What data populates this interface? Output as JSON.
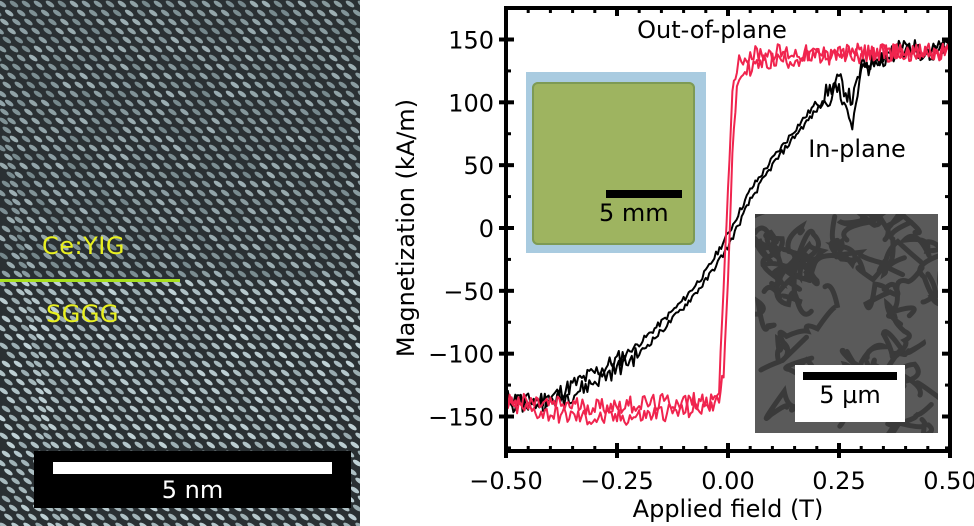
{
  "left_panel": {
    "type": "TEM lattice image",
    "labels": {
      "upper_layer": "Ce:YIG",
      "lower_layer": "SGGG"
    },
    "scale_bar": "5 nm",
    "colors": {
      "label": "#e8f020",
      "interface_line": "#a8e020"
    }
  },
  "insets": {
    "photo": {
      "scale_bar": "5 mm"
    },
    "mfm": {
      "scale_bar": "5 µm"
    }
  },
  "chart_data": {
    "type": "line",
    "title": "",
    "xlabel": "Applied field (T)",
    "ylabel": "Magnetization (kA/m)",
    "xlim": [
      -0.5,
      0.5
    ],
    "ylim": [
      -178,
      175
    ],
    "xticks": [
      -0.5,
      -0.25,
      0.0,
      0.25,
      0.5
    ],
    "xtick_labels": [
      "−0.50",
      "−0.25",
      "0.00",
      "0.25",
      "0.50"
    ],
    "yticks": [
      -150,
      -100,
      -50,
      0,
      50,
      100,
      150
    ],
    "ytick_labels": [
      "−150",
      "−100",
      "−50",
      "0",
      "50",
      "100",
      "150"
    ],
    "grid": false,
    "annotations": [
      {
        "text": "Out-of-plane",
        "series": "Out-of-plane",
        "color": "#f0244e"
      },
      {
        "text": "In-plane",
        "series": "In-plane",
        "color": "#000000"
      }
    ],
    "series": [
      {
        "name": "Out-of-plane",
        "color": "#f0244e",
        "branches": [
          {
            "x": [
              -0.5,
              -0.45,
              -0.4,
              -0.35,
              -0.3,
              -0.25,
              -0.2,
              -0.15,
              -0.1,
              -0.06,
              -0.03,
              -0.02,
              -0.01,
              0.0,
              0.01,
              0.02,
              0.03,
              0.05,
              0.1,
              0.2,
              0.3,
              0.4,
              0.5
            ],
            "y": [
              -140,
              -145,
              -148,
              -150,
              -152,
              -151,
              -150,
              -147,
              -146,
              -143,
              -138,
              -125,
              -50,
              30,
              110,
              130,
              135,
              138,
              140,
              138,
              140,
              140,
              138
            ]
          },
          {
            "x": [
              -0.5,
              -0.4,
              -0.3,
              -0.2,
              -0.1,
              -0.05,
              -0.03,
              -0.02,
              -0.01,
              0.0,
              0.01,
              0.02,
              0.03,
              0.05,
              0.08,
              0.1,
              0.2,
              0.3,
              0.4,
              0.5
            ],
            "y": [
              -138,
              -140,
              -142,
              -140,
              -138,
              -137,
              -136,
              -134,
              -120,
              -40,
              60,
              110,
              122,
              128,
              131,
              133,
              136,
              138,
              140,
              140
            ]
          }
        ]
      },
      {
        "name": "In-plane",
        "color": "#000000",
        "branches": [
          {
            "x": [
              -0.5,
              -0.45,
              -0.4,
              -0.35,
              -0.3,
              -0.25,
              -0.2,
              -0.15,
              -0.1,
              -0.05,
              0.0,
              0.05,
              0.1,
              0.15,
              0.2,
              0.25,
              0.28,
              0.3,
              0.35,
              0.4,
              0.45,
              0.5
            ],
            "y": [
              -135,
              -138,
              -135,
              -125,
              -115,
              -105,
              -92,
              -75,
              -57,
              -35,
              -5,
              30,
              55,
              78,
              100,
              118,
              100,
              128,
              138,
              145,
              140,
              145
            ]
          },
          {
            "x": [
              -0.5,
              -0.45,
              -0.4,
              -0.35,
              -0.3,
              -0.25,
              -0.2,
              -0.15,
              -0.1,
              -0.05,
              0.0,
              0.05,
              0.1,
              0.15,
              0.2,
              0.25,
              0.28,
              0.3,
              0.35,
              0.4,
              0.45,
              0.5
            ],
            "y": [
              -140,
              -140,
              -138,
              -132,
              -122,
              -112,
              -100,
              -82,
              -63,
              -42,
              -15,
              22,
              50,
              73,
              94,
              112,
              80,
              125,
              135,
              142,
              138,
              143
            ]
          }
        ]
      }
    ]
  }
}
